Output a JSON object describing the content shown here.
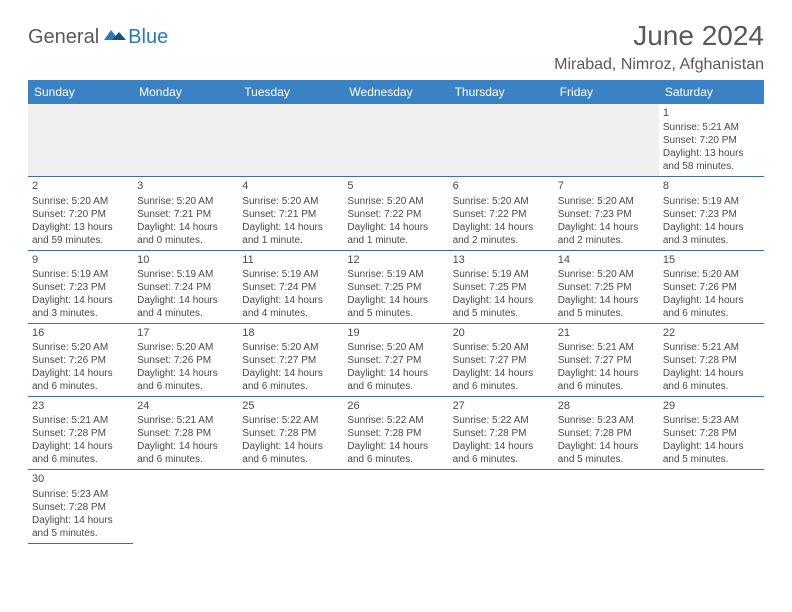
{
  "logo": {
    "text1": "General",
    "text2": "Blue"
  },
  "title": "June 2024",
  "location": "Mirabad, Nimroz, Afghanistan",
  "colors": {
    "header_bg": "#3b82c4",
    "header_text": "#ffffff",
    "border": "#3b6fa8",
    "text": "#4a4a4a",
    "title_text": "#595959",
    "logo_gray": "#5a5a5a",
    "logo_blue": "#2b79c2",
    "empty_bg": "#f0f0f0"
  },
  "day_headers": [
    "Sunday",
    "Monday",
    "Tuesday",
    "Wednesday",
    "Thursday",
    "Friday",
    "Saturday"
  ],
  "weeks": [
    [
      null,
      null,
      null,
      null,
      null,
      null,
      {
        "d": "1",
        "sr": "Sunrise: 5:21 AM",
        "ss": "Sunset: 7:20 PM",
        "dl1": "Daylight: 13 hours",
        "dl2": "and 58 minutes."
      }
    ],
    [
      {
        "d": "2",
        "sr": "Sunrise: 5:20 AM",
        "ss": "Sunset: 7:20 PM",
        "dl1": "Daylight: 13 hours",
        "dl2": "and 59 minutes."
      },
      {
        "d": "3",
        "sr": "Sunrise: 5:20 AM",
        "ss": "Sunset: 7:21 PM",
        "dl1": "Daylight: 14 hours",
        "dl2": "and 0 minutes."
      },
      {
        "d": "4",
        "sr": "Sunrise: 5:20 AM",
        "ss": "Sunset: 7:21 PM",
        "dl1": "Daylight: 14 hours",
        "dl2": "and 1 minute."
      },
      {
        "d": "5",
        "sr": "Sunrise: 5:20 AM",
        "ss": "Sunset: 7:22 PM",
        "dl1": "Daylight: 14 hours",
        "dl2": "and 1 minute."
      },
      {
        "d": "6",
        "sr": "Sunrise: 5:20 AM",
        "ss": "Sunset: 7:22 PM",
        "dl1": "Daylight: 14 hours",
        "dl2": "and 2 minutes."
      },
      {
        "d": "7",
        "sr": "Sunrise: 5:20 AM",
        "ss": "Sunset: 7:23 PM",
        "dl1": "Daylight: 14 hours",
        "dl2": "and 2 minutes."
      },
      {
        "d": "8",
        "sr": "Sunrise: 5:19 AM",
        "ss": "Sunset: 7:23 PM",
        "dl1": "Daylight: 14 hours",
        "dl2": "and 3 minutes."
      }
    ],
    [
      {
        "d": "9",
        "sr": "Sunrise: 5:19 AM",
        "ss": "Sunset: 7:23 PM",
        "dl1": "Daylight: 14 hours",
        "dl2": "and 3 minutes."
      },
      {
        "d": "10",
        "sr": "Sunrise: 5:19 AM",
        "ss": "Sunset: 7:24 PM",
        "dl1": "Daylight: 14 hours",
        "dl2": "and 4 minutes."
      },
      {
        "d": "11",
        "sr": "Sunrise: 5:19 AM",
        "ss": "Sunset: 7:24 PM",
        "dl1": "Daylight: 14 hours",
        "dl2": "and 4 minutes."
      },
      {
        "d": "12",
        "sr": "Sunrise: 5:19 AM",
        "ss": "Sunset: 7:25 PM",
        "dl1": "Daylight: 14 hours",
        "dl2": "and 5 minutes."
      },
      {
        "d": "13",
        "sr": "Sunrise: 5:19 AM",
        "ss": "Sunset: 7:25 PM",
        "dl1": "Daylight: 14 hours",
        "dl2": "and 5 minutes."
      },
      {
        "d": "14",
        "sr": "Sunrise: 5:20 AM",
        "ss": "Sunset: 7:25 PM",
        "dl1": "Daylight: 14 hours",
        "dl2": "and 5 minutes."
      },
      {
        "d": "15",
        "sr": "Sunrise: 5:20 AM",
        "ss": "Sunset: 7:26 PM",
        "dl1": "Daylight: 14 hours",
        "dl2": "and 6 minutes."
      }
    ],
    [
      {
        "d": "16",
        "sr": "Sunrise: 5:20 AM",
        "ss": "Sunset: 7:26 PM",
        "dl1": "Daylight: 14 hours",
        "dl2": "and 6 minutes."
      },
      {
        "d": "17",
        "sr": "Sunrise: 5:20 AM",
        "ss": "Sunset: 7:26 PM",
        "dl1": "Daylight: 14 hours",
        "dl2": "and 6 minutes."
      },
      {
        "d": "18",
        "sr": "Sunrise: 5:20 AM",
        "ss": "Sunset: 7:27 PM",
        "dl1": "Daylight: 14 hours",
        "dl2": "and 6 minutes."
      },
      {
        "d": "19",
        "sr": "Sunrise: 5:20 AM",
        "ss": "Sunset: 7:27 PM",
        "dl1": "Daylight: 14 hours",
        "dl2": "and 6 minutes."
      },
      {
        "d": "20",
        "sr": "Sunrise: 5:20 AM",
        "ss": "Sunset: 7:27 PM",
        "dl1": "Daylight: 14 hours",
        "dl2": "and 6 minutes."
      },
      {
        "d": "21",
        "sr": "Sunrise: 5:21 AM",
        "ss": "Sunset: 7:27 PM",
        "dl1": "Daylight: 14 hours",
        "dl2": "and 6 minutes."
      },
      {
        "d": "22",
        "sr": "Sunrise: 5:21 AM",
        "ss": "Sunset: 7:28 PM",
        "dl1": "Daylight: 14 hours",
        "dl2": "and 6 minutes."
      }
    ],
    [
      {
        "d": "23",
        "sr": "Sunrise: 5:21 AM",
        "ss": "Sunset: 7:28 PM",
        "dl1": "Daylight: 14 hours",
        "dl2": "and 6 minutes."
      },
      {
        "d": "24",
        "sr": "Sunrise: 5:21 AM",
        "ss": "Sunset: 7:28 PM",
        "dl1": "Daylight: 14 hours",
        "dl2": "and 6 minutes."
      },
      {
        "d": "25",
        "sr": "Sunrise: 5:22 AM",
        "ss": "Sunset: 7:28 PM",
        "dl1": "Daylight: 14 hours",
        "dl2": "and 6 minutes."
      },
      {
        "d": "26",
        "sr": "Sunrise: 5:22 AM",
        "ss": "Sunset: 7:28 PM",
        "dl1": "Daylight: 14 hours",
        "dl2": "and 6 minutes."
      },
      {
        "d": "27",
        "sr": "Sunrise: 5:22 AM",
        "ss": "Sunset: 7:28 PM",
        "dl1": "Daylight: 14 hours",
        "dl2": "and 6 minutes."
      },
      {
        "d": "28",
        "sr": "Sunrise: 5:23 AM",
        "ss": "Sunset: 7:28 PM",
        "dl1": "Daylight: 14 hours",
        "dl2": "and 5 minutes."
      },
      {
        "d": "29",
        "sr": "Sunrise: 5:23 AM",
        "ss": "Sunset: 7:28 PM",
        "dl1": "Daylight: 14 hours",
        "dl2": "and 5 minutes."
      }
    ],
    [
      {
        "d": "30",
        "sr": "Sunrise: 5:23 AM",
        "ss": "Sunset: 7:28 PM",
        "dl1": "Daylight: 14 hours",
        "dl2": "and 5 minutes."
      },
      null,
      null,
      null,
      null,
      null,
      null
    ]
  ]
}
